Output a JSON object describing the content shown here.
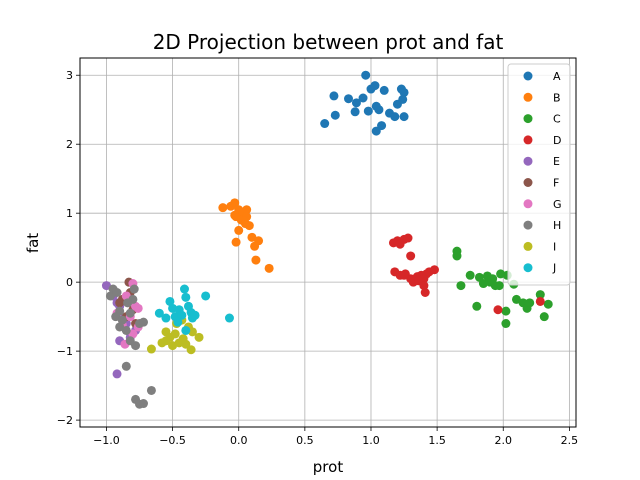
{
  "chart_data": {
    "type": "scatter",
    "title": "2D Projection between prot and fat",
    "xlabel": "prot",
    "ylabel": "fat",
    "xlim": [
      -1.2,
      2.55
    ],
    "ylim": [
      -2.1,
      3.25
    ],
    "xticks": [
      -1.0,
      -0.5,
      0.0,
      0.5,
      1.0,
      1.5,
      2.0,
      2.5
    ],
    "xtick_labels": [
      "−1.0",
      "−0.5",
      "0.0",
      "0.5",
      "1.0",
      "1.5",
      "2.0",
      "2.5"
    ],
    "yticks": [
      -2,
      -1,
      0,
      1,
      2,
      3
    ],
    "ytick_labels": [
      "−2",
      "−1",
      "0",
      "1",
      "2",
      "3"
    ],
    "grid": true,
    "legend_position": "top-right",
    "series": [
      {
        "name": "A",
        "color": "#1f77b4",
        "points": [
          [
            0.96,
            3.0
          ],
          [
            0.72,
            2.7
          ],
          [
            0.83,
            2.66
          ],
          [
            0.89,
            2.6
          ],
          [
            0.94,
            2.67
          ],
          [
            1.0,
            2.8
          ],
          [
            1.03,
            2.85
          ],
          [
            1.1,
            2.78
          ],
          [
            1.23,
            2.8
          ],
          [
            1.25,
            2.75
          ],
          [
            1.2,
            2.58
          ],
          [
            1.24,
            2.65
          ],
          [
            0.65,
            2.3
          ],
          [
            0.73,
            2.42
          ],
          [
            0.88,
            2.47
          ],
          [
            0.98,
            2.48
          ],
          [
            1.06,
            2.5
          ],
          [
            1.14,
            2.45
          ],
          [
            1.18,
            2.4
          ],
          [
            1.25,
            2.4
          ],
          [
            1.04,
            2.55
          ],
          [
            1.08,
            2.27
          ],
          [
            1.04,
            2.19
          ]
        ]
      },
      {
        "name": "B",
        "color": "#ff7f0e",
        "points": [
          [
            -0.12,
            1.08
          ],
          [
            -0.06,
            1.1
          ],
          [
            -0.03,
            1.15
          ],
          [
            0.0,
            1.05
          ],
          [
            0.03,
            1.0
          ],
          [
            0.06,
            1.05
          ],
          [
            -0.02,
            0.95
          ],
          [
            0.02,
            0.9
          ],
          [
            0.05,
            0.85
          ],
          [
            0.08,
            0.82
          ],
          [
            0.0,
            0.75
          ],
          [
            0.1,
            0.65
          ],
          [
            0.15,
            0.6
          ],
          [
            0.12,
            0.52
          ],
          [
            -0.02,
            0.58
          ],
          [
            0.13,
            0.32
          ],
          [
            0.23,
            0.2
          ],
          [
            -0.03,
            0.97
          ],
          [
            0.06,
            0.95
          ]
        ]
      },
      {
        "name": "C",
        "color": "#2ca02c",
        "points": [
          [
            1.65,
            0.45
          ],
          [
            1.65,
            0.38
          ],
          [
            1.75,
            0.1
          ],
          [
            1.68,
            -0.05
          ],
          [
            1.82,
            0.07
          ],
          [
            1.85,
            -0.02
          ],
          [
            1.88,
            0.09
          ],
          [
            1.9,
            0.0
          ],
          [
            1.92,
            0.05
          ],
          [
            1.94,
            -0.05
          ],
          [
            1.98,
            0.12
          ],
          [
            2.03,
            0.1
          ],
          [
            2.08,
            -0.03
          ],
          [
            1.8,
            -0.35
          ],
          [
            2.1,
            -0.25
          ],
          [
            2.15,
            -0.3
          ],
          [
            2.18,
            -0.38
          ],
          [
            2.2,
            -0.3
          ],
          [
            2.02,
            -0.42
          ],
          [
            2.02,
            -0.6
          ],
          [
            2.28,
            -0.18
          ],
          [
            2.34,
            -0.32
          ],
          [
            2.31,
            -0.5
          ],
          [
            1.97,
            -0.05
          ]
        ]
      },
      {
        "name": "D",
        "color": "#d62728",
        "points": [
          [
            1.17,
            0.57
          ],
          [
            1.2,
            0.6
          ],
          [
            1.25,
            0.62
          ],
          [
            1.28,
            0.64
          ],
          [
            1.22,
            0.55
          ],
          [
            1.18,
            0.15
          ],
          [
            1.22,
            0.1
          ],
          [
            1.26,
            0.12
          ],
          [
            1.3,
            0.05
          ],
          [
            1.32,
            0.0
          ],
          [
            1.35,
            0.08
          ],
          [
            1.38,
            0.1
          ],
          [
            1.4,
            0.05
          ],
          [
            1.42,
            0.12
          ],
          [
            1.44,
            0.15
          ],
          [
            1.48,
            0.18
          ],
          [
            1.36,
            0.02
          ],
          [
            1.4,
            -0.05
          ],
          [
            1.41,
            -0.15
          ],
          [
            1.3,
            0.38
          ],
          [
            1.25,
            0.1
          ],
          [
            1.96,
            -0.4
          ],
          [
            2.28,
            -0.28
          ]
        ]
      },
      {
        "name": "E",
        "color": "#9467bd",
        "points": [
          [
            -1.0,
            -0.05
          ],
          [
            -0.95,
            -0.2
          ],
          [
            -0.92,
            -0.3
          ],
          [
            -0.9,
            -0.35
          ],
          [
            -0.88,
            -0.52
          ],
          [
            -0.85,
            -0.6
          ],
          [
            -0.9,
            -0.85
          ],
          [
            -0.82,
            -0.8
          ],
          [
            -0.92,
            -1.33
          ],
          [
            -0.78,
            -0.7
          ]
        ]
      },
      {
        "name": "F",
        "color": "#8c564b",
        "points": [
          [
            -0.83,
            0.0
          ],
          [
            -0.88,
            -0.25
          ],
          [
            -0.8,
            -0.4
          ],
          [
            -0.85,
            -0.5
          ],
          [
            -0.78,
            -0.6
          ],
          [
            -0.9,
            -0.3
          ],
          [
            -0.82,
            -0.15
          ]
        ]
      },
      {
        "name": "G",
        "color": "#e377c2",
        "points": [
          [
            -0.8,
            -0.02
          ],
          [
            -0.85,
            -0.2
          ],
          [
            -0.78,
            -0.35
          ],
          [
            -0.82,
            -0.5
          ],
          [
            -0.76,
            -0.65
          ],
          [
            -0.8,
            -0.75
          ],
          [
            -0.86,
            -0.9
          ],
          [
            -0.76,
            -0.38
          ],
          [
            -0.92,
            -0.45
          ],
          [
            -0.88,
            -0.62
          ]
        ]
      },
      {
        "name": "H",
        "color": "#7f7f7f",
        "points": [
          [
            -0.97,
            -0.2
          ],
          [
            -0.95,
            -0.1
          ],
          [
            -0.92,
            -0.15
          ],
          [
            -0.9,
            -0.42
          ],
          [
            -0.93,
            -0.5
          ],
          [
            -0.88,
            -0.55
          ],
          [
            -0.85,
            -0.7
          ],
          [
            -0.82,
            -0.85
          ],
          [
            -0.8,
            -0.25
          ],
          [
            -0.78,
            -0.92
          ],
          [
            -0.75,
            -0.6
          ],
          [
            -0.72,
            -0.58
          ],
          [
            -0.85,
            -1.22
          ],
          [
            -0.78,
            -1.7
          ],
          [
            -0.75,
            -1.77
          ],
          [
            -0.72,
            -1.76
          ],
          [
            -0.66,
            -1.57
          ],
          [
            -0.84,
            -0.3
          ],
          [
            -0.9,
            -0.65
          ],
          [
            -0.82,
            -0.45
          ],
          [
            -0.79,
            -0.1
          ]
        ]
      },
      {
        "name": "I",
        "color": "#bcbd22",
        "points": [
          [
            -0.66,
            -0.97
          ],
          [
            -0.58,
            -0.88
          ],
          [
            -0.55,
            -0.72
          ],
          [
            -0.52,
            -0.8
          ],
          [
            -0.48,
            -0.75
          ],
          [
            -0.45,
            -0.88
          ],
          [
            -0.42,
            -0.82
          ],
          [
            -0.4,
            -0.9
          ],
          [
            -0.38,
            -0.65
          ],
          [
            -0.35,
            -0.72
          ],
          [
            -0.36,
            -0.98
          ],
          [
            -0.3,
            -0.8
          ],
          [
            -0.47,
            -0.6
          ],
          [
            -0.43,
            -0.55
          ],
          [
            -0.5,
            -0.92
          ],
          [
            -0.55,
            -0.85
          ]
        ]
      },
      {
        "name": "J",
        "color": "#17becf",
        "points": [
          [
            -0.6,
            -0.45
          ],
          [
            -0.55,
            -0.52
          ],
          [
            -0.52,
            -0.28
          ],
          [
            -0.5,
            -0.38
          ],
          [
            -0.48,
            -0.5
          ],
          [
            -0.45,
            -0.4
          ],
          [
            -0.43,
            -0.48
          ],
          [
            -0.41,
            -0.1
          ],
          [
            -0.4,
            -0.22
          ],
          [
            -0.38,
            -0.35
          ],
          [
            -0.36,
            -0.44
          ],
          [
            -0.35,
            -0.52
          ],
          [
            -0.33,
            -0.48
          ],
          [
            -0.25,
            -0.2
          ],
          [
            -0.4,
            -0.7
          ],
          [
            -0.07,
            -0.52
          ],
          [
            -0.46,
            -0.58
          ]
        ]
      }
    ]
  }
}
